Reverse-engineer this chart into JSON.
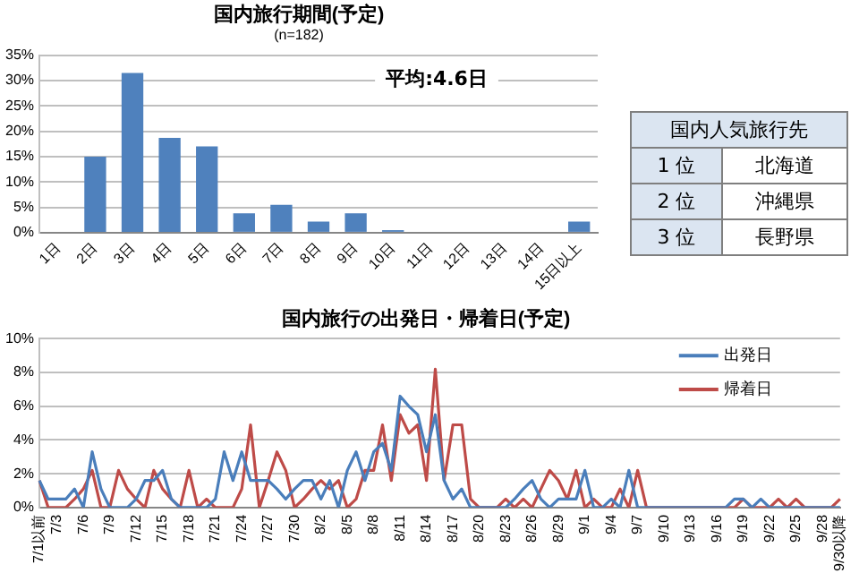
{
  "chart_data": [
    {
      "type": "bar",
      "title": "国内旅行期間(予定)",
      "subtitle": "(n=182)",
      "categories": [
        "1日",
        "2日",
        "3日",
        "4日",
        "5日",
        "6日",
        "7日",
        "8日",
        "9日",
        "10日",
        "11日",
        "12日",
        "13日",
        "14日",
        "15日以上"
      ],
      "values": [
        0,
        15,
        31.5,
        18.7,
        17,
        3.8,
        5.5,
        2.2,
        3.8,
        0.5,
        0,
        0,
        0,
        0,
        2.2
      ],
      "color": "#4f81bd",
      "ylim": [
        0,
        35
      ],
      "yticks": [
        {
          "value": 0,
          "label": "0%"
        },
        {
          "value": 5,
          "label": "5%"
        },
        {
          "value": 10,
          "label": "10%"
        },
        {
          "value": 15,
          "label": "15%"
        },
        {
          "value": 20,
          "label": "20%"
        },
        {
          "value": 25,
          "label": "25%"
        },
        {
          "value": 30,
          "label": "30%"
        },
        {
          "value": 35,
          "label": "35%"
        }
      ],
      "grid": "y",
      "annotations": [
        "平均:4.6日"
      ]
    },
    {
      "type": "other",
      "title": "国内人気旅行先",
      "annotations": [
        "1 位",
        "北海道",
        "2 位",
        "沖縄県",
        "3 位",
        "長野県"
      ]
    },
    {
      "type": "line",
      "title": "国内旅行の出発日・帰着日(予定)",
      "categories": [
        "7/1以前",
        null,
        "7/3",
        null,
        null,
        "7/6",
        null,
        null,
        "7/9",
        null,
        null,
        "7/12",
        null,
        null,
        "7/15",
        null,
        null,
        "7/18",
        null,
        null,
        "7/21",
        null,
        null,
        "7/24",
        null,
        null,
        "7/27",
        null,
        null,
        "7/30",
        null,
        null,
        "8/2",
        null,
        null,
        "8/5",
        null,
        null,
        "8/8",
        null,
        null,
        "8/11",
        null,
        null,
        "8/14",
        null,
        null,
        "8/17",
        null,
        null,
        "8/20",
        null,
        null,
        "8/23",
        null,
        null,
        "8/26",
        null,
        null,
        "8/29",
        null,
        null,
        "9/1",
        null,
        null,
        "9/4",
        null,
        null,
        "9/7",
        null,
        null,
        "9/10",
        null,
        null,
        "9/13",
        null,
        null,
        "9/16",
        null,
        null,
        "9/19",
        null,
        null,
        "9/22",
        null,
        null,
        "9/25",
        null,
        null,
        "9/28",
        null,
        "9/30以降"
      ],
      "series": [
        {
          "name": "出発日",
          "color": "#4a7ebb",
          "values": [
            1.6,
            0.5,
            0.5,
            0.5,
            1.1,
            0,
            3.3,
            1.1,
            0,
            0,
            0,
            0.5,
            1.6,
            1.6,
            2.2,
            0.5,
            0,
            0,
            0,
            0,
            0.5,
            3.3,
            1.6,
            3.3,
            1.6,
            1.6,
            1.6,
            1.1,
            0.5,
            1.1,
            1.6,
            1.6,
            0.5,
            1.6,
            0,
            2.2,
            3.3,
            1.6,
            3.3,
            3.8,
            2.2,
            6.6,
            6,
            5.5,
            3.3,
            5.5,
            1.6,
            0.5,
            1.1,
            0,
            0,
            0,
            0,
            0,
            0.5,
            1.1,
            1.6,
            0.5,
            0,
            0.5,
            0.5,
            0.5,
            2.2,
            0,
            0,
            0.5,
            0,
            2.2,
            0,
            0,
            0,
            0,
            0,
            0,
            0,
            0,
            0,
            0,
            0,
            0.5,
            0.5,
            0,
            0.5,
            0,
            0,
            0,
            0,
            0,
            0,
            0,
            0,
            0
          ]
        },
        {
          "name": "帰着日",
          "color": "#be4b48",
          "values": [
            1.6,
            0,
            0,
            0,
            0.5,
            1.1,
            2.2,
            0,
            0,
            2.2,
            1.1,
            0.5,
            0,
            2.2,
            1.1,
            0.5,
            0,
            2.2,
            0,
            0.5,
            0,
            0,
            0,
            1.1,
            4.9,
            0,
            1.6,
            3.3,
            2.2,
            0,
            0.5,
            1.1,
            1.6,
            1.1,
            1.6,
            0,
            0.5,
            2.2,
            2.2,
            4.9,
            1.6,
            5.5,
            4.4,
            4.9,
            1.6,
            8.2,
            1.6,
            4.9,
            4.9,
            0.5,
            0,
            0,
            0,
            0.5,
            0,
            0.5,
            0,
            1.1,
            2.2,
            1.6,
            0.5,
            2.2,
            0,
            0.5,
            0,
            0,
            1.1,
            0,
            2.2,
            0,
            0,
            0,
            0,
            0,
            0,
            0,
            0,
            0,
            0,
            0,
            0.5,
            0,
            0,
            0,
            0.5,
            0,
            0.5,
            0,
            0,
            0,
            0,
            0.5
          ]
        }
      ],
      "ylim": [
        0,
        10
      ],
      "yticks": [
        {
          "value": 0,
          "label": "0%"
        },
        {
          "value": 2,
          "label": "2%"
        },
        {
          "value": 4,
          "label": "4%"
        },
        {
          "value": 6,
          "label": "6%"
        },
        {
          "value": 8,
          "label": "8%"
        },
        {
          "value": 10,
          "label": "10%"
        }
      ],
      "grid": "y",
      "legend": "top right",
      "marker": "none"
    }
  ]
}
